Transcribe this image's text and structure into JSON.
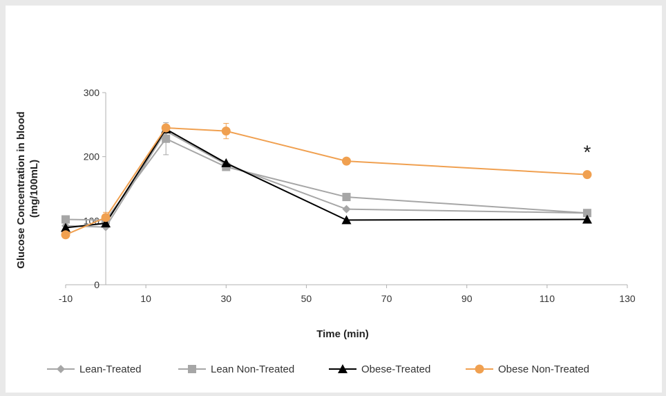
{
  "chart_data": {
    "type": "line",
    "xlabel": "Time (min)",
    "ylabel": "Glucose Concentration in blood (mg/100mL)",
    "ylabel_lines": [
      "Glucose Concentration in blood",
      "(mg/100mL)"
    ],
    "xlim": [
      -10,
      130
    ],
    "ylim": [
      0,
      300
    ],
    "xticks": [
      -10,
      10,
      30,
      50,
      70,
      90,
      110,
      130
    ],
    "yticks": [
      0,
      100,
      200,
      300
    ],
    "grid": false,
    "legend_position": "bottom",
    "annotation": {
      "text": "*",
      "x": 120,
      "y": 210
    },
    "series": [
      {
        "name": "Lean-Treated",
        "color": "#a6a6a6",
        "marker": "diamond",
        "points": [
          [
            -10,
            92
          ],
          [
            0,
            90
          ],
          [
            15,
            240
          ],
          [
            30,
            188
          ],
          [
            60,
            118
          ],
          [
            120,
            112
          ]
        ]
      },
      {
        "name": "Lean Non-Treated",
        "color": "#a6a6a6",
        "marker": "square",
        "points": [
          [
            -10,
            102
          ],
          [
            0,
            101
          ],
          [
            15,
            228
          ],
          [
            30,
            184
          ],
          [
            60,
            137
          ],
          [
            120,
            112
          ]
        ]
      },
      {
        "name": "Obese-Treated",
        "color": "#000000",
        "marker": "triangle",
        "points": [
          [
            -10,
            89
          ],
          [
            0,
            96
          ],
          [
            15,
            243
          ],
          [
            30,
            190
          ],
          [
            60,
            101
          ],
          [
            120,
            102
          ]
        ]
      },
      {
        "name": "Obese Non-Treated",
        "color": "#f0a050",
        "marker": "circle",
        "points": [
          [
            -10,
            78
          ],
          [
            0,
            105
          ],
          [
            15,
            245
          ],
          [
            30,
            240
          ],
          [
            60,
            193
          ],
          [
            120,
            172
          ]
        ]
      }
    ],
    "error_bars": [
      {
        "series": 1,
        "x": 15,
        "y": 228,
        "err": 25
      },
      {
        "series": 3,
        "x": 0,
        "y": 105,
        "err": 8
      },
      {
        "series": 3,
        "x": 30,
        "y": 240,
        "err": 12
      }
    ]
  }
}
